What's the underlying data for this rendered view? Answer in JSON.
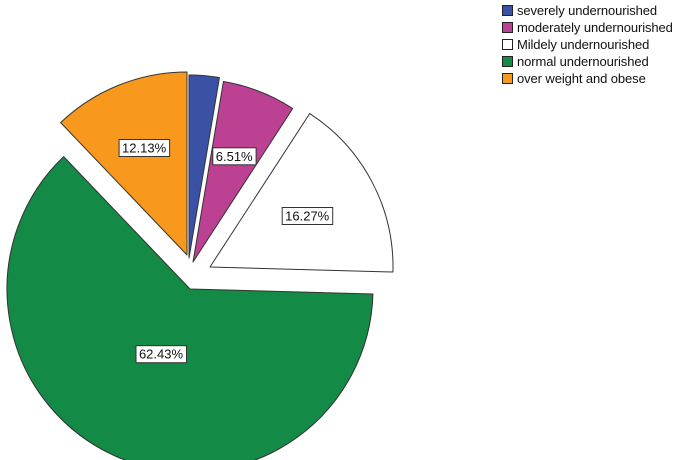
{
  "chart_data": {
    "type": "pie",
    "slices": [
      {
        "label": "severely undernourished",
        "value": 2.66,
        "data_label": "",
        "color": "#3a51a6"
      },
      {
        "label": "moderately undernourished",
        "value": 6.51,
        "data_label": "6.51%",
        "color": "#bd4193"
      },
      {
        "label": "Mildely undernourished",
        "value": 16.27,
        "data_label": "16.27%",
        "color": "#ffffff"
      },
      {
        "label": "normal undernourished",
        "value": 62.43,
        "data_label": "62.43%",
        "color": "#138a45"
      },
      {
        "label": "over weight and obese",
        "value": 12.13,
        "data_label": "12.13%",
        "color": "#f8991d"
      }
    ],
    "legend_position": "top-right",
    "exploded": true
  }
}
